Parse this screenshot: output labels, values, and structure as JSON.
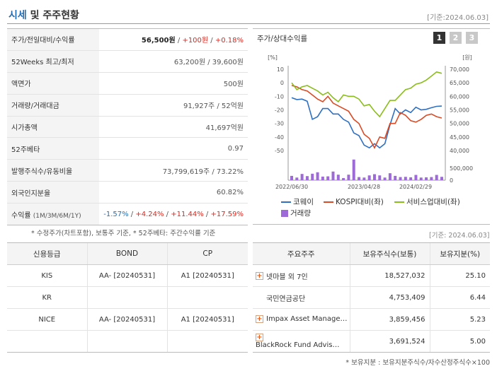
{
  "header": {
    "title_main": "시세",
    "title_rest": "및 주주현황",
    "base_date": "[기준:2024.06.03]"
  },
  "info": {
    "rows": [
      {
        "label": "주가/전일대비/수익률"
      },
      {
        "label": "52Weeks 최고/최저",
        "value": "63,200원 / 39,600원"
      },
      {
        "label": "액면가",
        "value": "500원"
      },
      {
        "label": "거래량/거래대금",
        "value": "91,927주 / 52억원"
      },
      {
        "label": "시가총액",
        "value": "41,697억원"
      },
      {
        "label": "52주베타",
        "value": "0.97"
      },
      {
        "label": "발행주식수/유동비율",
        "value": "73,799,619주 / 73.22%"
      },
      {
        "label": "외국인지분율",
        "value": "60.82%"
      },
      {
        "label": "수익률",
        "label_sub": "(1M/3M/6M/1Y)"
      }
    ],
    "price": "56,500원",
    "change": "+100원",
    "change_pct": "+0.18%",
    "sep": " / ",
    "returns": [
      "-1.57%",
      "+4.24%",
      "+11.44%",
      "+17.59%"
    ],
    "note": "* 수정주가(차트포함), 보통주 기준, * 52주베타: 주간수익률 기준"
  },
  "chart": {
    "title": "주가/상대수익률",
    "pages": [
      "1",
      "2",
      "3"
    ],
    "left_unit": "[%]",
    "right_unit": "[원]",
    "legend": {
      "s1": "코웨이",
      "s2": "KOSPI대비(좌)",
      "s3": "서비스업대비(좌)",
      "bar": "거래량"
    }
  },
  "chart_data": {
    "type": "line",
    "title": "주가/상대수익률",
    "x_ticks": [
      "2022/06/30",
      "2023/04/28",
      "2024/02/29"
    ],
    "y_left": {
      "label": "[%]",
      "range": [
        -50,
        10
      ],
      "ticks": [
        10,
        0,
        -10,
        -20,
        -30,
        -40,
        -50
      ]
    },
    "y_right": {
      "label": "[원]",
      "range": [
        40000,
        70000
      ],
      "ticks": [
        70000,
        65000,
        60000,
        55000,
        50000,
        45000,
        40000
      ]
    },
    "volume_axis": {
      "range": [
        0,
        1000000
      ],
      "ticks": [
        500000,
        0
      ]
    },
    "series": [
      {
        "name": "코웨이",
        "color": "#2f6fc1",
        "axis": "right",
        "values": [
          59500,
          58800,
          59000,
          58200,
          51500,
          52500,
          55500,
          55500,
          53500,
          53500,
          51500,
          50500,
          46500,
          45500,
          42000,
          41000,
          42500,
          41000,
          42500,
          49500,
          55500,
          53500,
          55000,
          54000,
          56000,
          55000,
          55200,
          55800,
          56300,
          56400
        ]
      },
      {
        "name": "KOSPI대비(좌)",
        "color": "#d94b26",
        "axis": "left",
        "values": [
          -2,
          -3,
          -5,
          -6,
          -9,
          -12,
          -14,
          -10,
          -15,
          -17,
          -19,
          -21,
          -27,
          -30,
          -38,
          -41,
          -48,
          -40,
          -41,
          -30,
          -30,
          -22,
          -24,
          -28,
          -29,
          -27,
          -24,
          -23,
          -25,
          -26
        ]
      },
      {
        "name": "서비스업대비(좌)",
        "color": "#8bbd1c",
        "axis": "left",
        "values": [
          0,
          -5,
          -3,
          -2,
          -4,
          -6,
          -9,
          -7,
          -11,
          -14,
          -9,
          -10,
          -10,
          -12,
          -17,
          -16,
          -21,
          -25,
          -19,
          -13,
          -13,
          -9,
          -5,
          -4,
          -1,
          0,
          2,
          5,
          8,
          7
        ]
      },
      {
        "name": "거래량",
        "color": "#9d6ad8",
        "type": "bar",
        "axis": "volume",
        "values": [
          180000,
          110000,
          260000,
          170000,
          270000,
          330000,
          150000,
          160000,
          360000,
          230000,
          90000,
          230000,
          860000,
          130000,
          110000,
          200000,
          250000,
          200000,
          110000,
          290000,
          180000,
          130000,
          140000,
          120000,
          220000,
          110000,
          120000,
          130000,
          220000,
          140000
        ]
      }
    ]
  },
  "credit": {
    "headers": [
      "신용등급",
      "BOND",
      "CP"
    ],
    "rows": [
      [
        "KIS",
        "AA-  [20240531]",
        "A1  [20240531]"
      ],
      [
        "KR",
        "",
        ""
      ],
      [
        "NICE",
        "AA-  [20240531]",
        "A1  [20240531]"
      ],
      [
        "",
        "",
        ""
      ]
    ]
  },
  "holders": {
    "base_date": "[기준: 2024.06.03]",
    "headers": [
      "주요주주",
      "보유주식수(보통)",
      "보유지분(%)"
    ],
    "rows": [
      {
        "name": "넷마블 외 7인",
        "shares": "18,527,032",
        "pct": "25.10",
        "expand": true
      },
      {
        "name": "국민연금공단",
        "shares": "4,753,409",
        "pct": "6.44",
        "expand": false
      },
      {
        "name": "Impax Asset Manage…",
        "shares": "3,859,456",
        "pct": "5.23",
        "expand": true
      },
      {
        "name": "BlackRock Fund Advis…",
        "shares": "3,691,524",
        "pct": "5.00",
        "expand": true
      }
    ],
    "expand_glyph": "+",
    "note": "* 보유지분 : 보유지분주식수/자수산정주식수×100"
  }
}
